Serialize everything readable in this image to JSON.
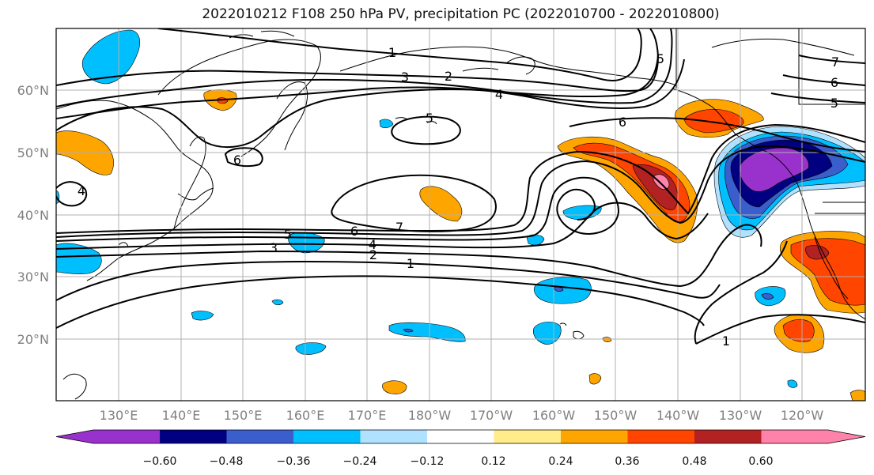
{
  "title": "2022010212 F108 250 hPa PV, precipitation PC (2022010700 - 2022010800)",
  "map": {
    "lon_labels": [
      "130°E",
      "140°E",
      "150°E",
      "160°E",
      "170°E",
      "180°W",
      "170°W",
      "160°W",
      "150°W",
      "140°W",
      "130°W",
      "120°W"
    ],
    "lat_labels": [
      "60°N",
      "50°N",
      "40°N",
      "30°N",
      "20°N"
    ],
    "tick_color": "#808080",
    "gridline_color": "#b0b0b0",
    "coastline_color": "#000000",
    "grid": true
  },
  "contours": {
    "variable": "250 hPa PV",
    "line_color": "#000000",
    "labels": [
      "1",
      "2",
      "3",
      "4",
      "5",
      "6",
      "7",
      "5",
      "6",
      "7",
      "4",
      "6",
      "5",
      "2",
      "3",
      "1",
      "4",
      "6",
      "7",
      "5",
      "1"
    ]
  },
  "colorbar": {
    "tick_labels": [
      "−0.60",
      "−0.48",
      "−0.36",
      "−0.24",
      "−0.12",
      "0.12",
      "0.24",
      "0.36",
      "0.48",
      "0.60"
    ],
    "bins": [
      {
        "color": "#9932cc"
      },
      {
        "color": "#000080"
      },
      {
        "color": "#3a5fcd"
      },
      {
        "color": "#00bfff"
      },
      {
        "color": "#b0e2ff"
      },
      {
        "color": "#ffffff"
      },
      {
        "color": "#ffec8b"
      },
      {
        "color": "#ffa500"
      },
      {
        "color": "#ff4500"
      },
      {
        "color": "#b22222"
      },
      {
        "color": "#ff82ab"
      }
    ],
    "extend": "both"
  }
}
